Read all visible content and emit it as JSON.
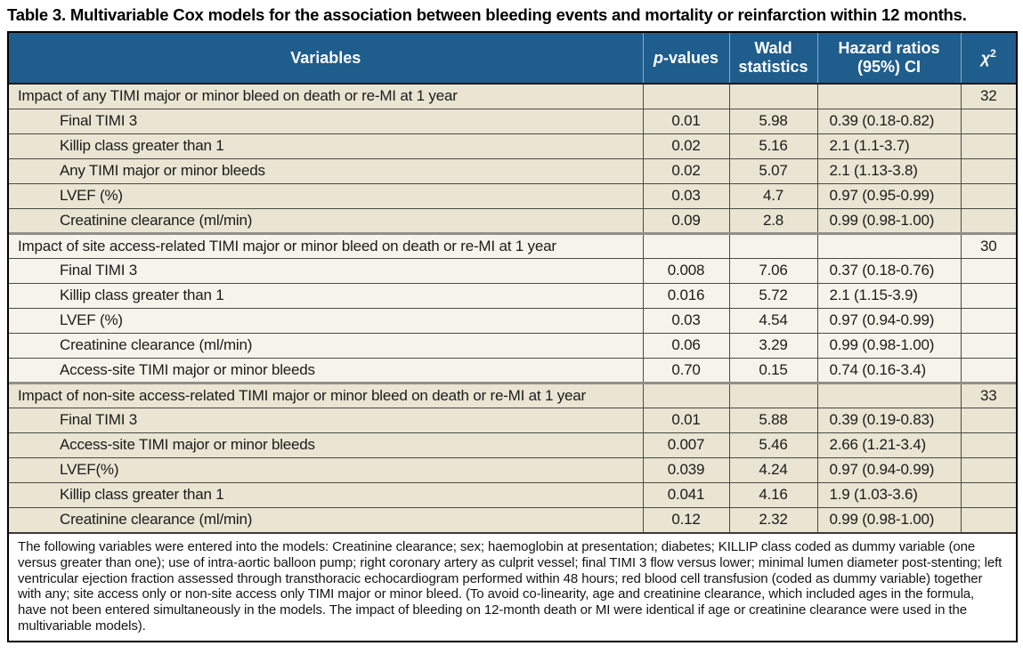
{
  "title": "Table 3. Multivariable Cox models for the association between bleeding events and mortality or reinfarction within 12 months.",
  "colors": {
    "header_blue": "#1f5d8c",
    "header_text": "#ffffff",
    "row_tan": "#e9e5d2",
    "row_light": "#f5f4ea",
    "outer_border": "#000000"
  },
  "table": {
    "headers": {
      "variables": "Variables",
      "p_italic": "p",
      "p_rest": "-values",
      "wald": "Wald statistics",
      "hazard": "Hazard ratios (95%) CI",
      "chi_symbol": "χ",
      "chi_sup": "2"
    },
    "sections": [
      {
        "label": "Impact of any TIMI major or minor bleed on death or re-MI at 1 year",
        "chi2": "32",
        "rows": [
          {
            "variable": "Final TIMI 3",
            "p": "0.01",
            "wald": "5.98",
            "hr": "0.39 (0.18-0.82)"
          },
          {
            "variable": "Killip class greater than 1",
            "p": "0.02",
            "wald": "5.16",
            "hr": "2.1 (1.1-3.7)"
          },
          {
            "variable": "Any TIMI major or minor bleeds",
            "p": "0.02",
            "wald": "5.07",
            "hr": "2.1 (1.13-3.8)"
          },
          {
            "variable": "LVEF (%)",
            "p": "0.03",
            "wald": "4.7",
            "hr": "0.97 (0.95-0.99)"
          },
          {
            "variable": "Creatinine clearance (ml/min)",
            "p": "0.09",
            "wald": "2.8",
            "hr": "0.99 (0.98-1.00)"
          }
        ]
      },
      {
        "label": "Impact of site access-related TIMI major or minor bleed on death or re-MI at 1 year",
        "chi2": "30",
        "rows": [
          {
            "variable": "Final TIMI 3",
            "p": "0.008",
            "wald": "7.06",
            "hr": "0.37 (0.18-0.76)"
          },
          {
            "variable": "Killip class greater than 1",
            "p": "0.016",
            "wald": "5.72",
            "hr": "2.1 (1.15-3.9)"
          },
          {
            "variable": "LVEF (%)",
            "p": "0.03",
            "wald": "4.54",
            "hr": "0.97 (0.94-0.99)"
          },
          {
            "variable": "Creatinine clearance (ml/min)",
            "p": "0.06",
            "wald": "3.29",
            "hr": "0.99 (0.98-1.00)"
          },
          {
            "variable": "Access-site TIMI major or minor bleeds",
            "p": "0.70",
            "wald": "0.15",
            "hr": "0.74 (0.16-3.4)"
          }
        ]
      },
      {
        "label": "Impact of non-site access-related TIMI major or minor bleed on death or re-MI at 1 year",
        "chi2": "33",
        "rows": [
          {
            "variable": "Final TIMI 3",
            "p": "0.01",
            "wald": "5.88",
            "hr": "0.39 (0.19-0.83)"
          },
          {
            "variable": "Access-site TIMI major or minor bleeds",
            "p": "0.007",
            "wald": "5.46",
            "hr": "2.66 (1.21-3.4)"
          },
          {
            "variable": "LVEF(%)",
            "p": "0.039",
            "wald": "4.24",
            "hr": "0.97 (0.94-0.99)"
          },
          {
            "variable": "Killip class greater than 1",
            "p": "0.041",
            "wald": "4.16",
            "hr": "1.9 (1.03-3.6)"
          },
          {
            "variable": "Creatinine clearance (ml/min)",
            "p": "0.12",
            "wald": "2.32",
            "hr": "0.99 (0.98-1.00)"
          }
        ]
      }
    ]
  },
  "footnote": "The following variables were entered into the models: Creatinine clearance; sex; haemoglobin at presentation; diabetes; KILLIP class coded as dummy variable (one versus greater than one); use of intra-aortic balloon pump; right coronary artery as culprit vessel; final TIMI 3 flow versus lower; minimal lumen diameter post-stenting; left ventricular ejection fraction assessed through transthoracic echocardiogram performed within 48 hours; red blood cell transfusion (coded as dummy variable) together with any; site access only or non-site access only TIMI major or minor bleed. (To avoid co-linearity, age and creatinine clearance, which included ages in the formula, have not been entered simultaneously in the models. The impact of bleeding on 12-month death or MI were identical if age or creatinine clearance were used in the multivariable models)."
}
